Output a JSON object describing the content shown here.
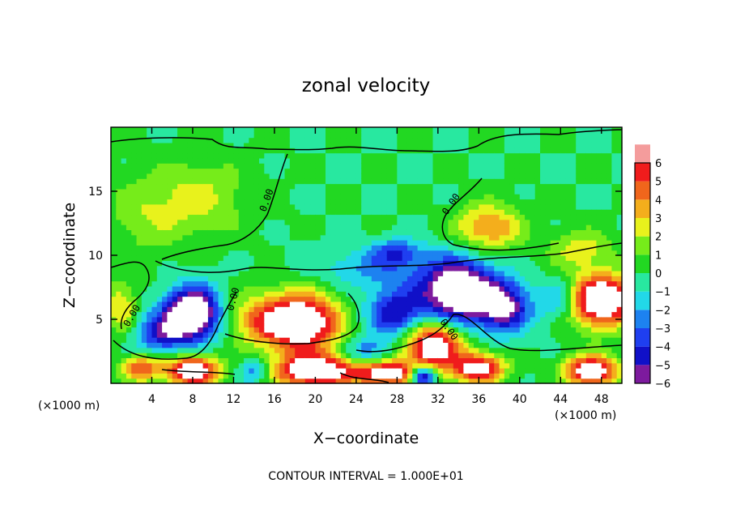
{
  "chart_data": {
    "type": "heatmap",
    "title": "zonal velocity",
    "xlabel": "X−coordinate",
    "ylabel": "Z−coordinate",
    "x_unit_left": "(×1000 m)",
    "x_unit_right": "(×1000 m)",
    "footer": "CONTOUR INTERVAL = 1.000E+01",
    "xlim": [
      0,
      50
    ],
    "ylim": [
      0,
      20
    ],
    "x_ticks": [
      4,
      8,
      12,
      16,
      20,
      24,
      28,
      32,
      36,
      40,
      44,
      48
    ],
    "y_ticks": [
      5,
      10,
      15
    ],
    "contour_label": "0.00",
    "colorbar": {
      "levels": [
        -6,
        -5,
        -4,
        -3,
        -2,
        -1,
        0,
        1,
        2,
        3,
        4,
        5,
        6
      ],
      "colors": [
        "#7d1a9e",
        "#1010c8",
        "#1f3ff0",
        "#1d82f0",
        "#22d8e8",
        "#28e8a0",
        "#22d822",
        "#76ec1a",
        "#e8f21c",
        "#f4ae1c",
        "#f0661c",
        "#f01c1c",
        "#f49c9c"
      ],
      "saturated_color": "#ffffff"
    },
    "features": [
      {
        "x": 8.5,
        "z": 14.5,
        "value": 2.2,
        "sx": 5,
        "sz": 3
      },
      {
        "x": 3,
        "z": 13,
        "value": 1.4,
        "sx": 4,
        "sz": 3
      },
      {
        "x": 37,
        "z": 12.2,
        "value": 4.2,
        "sx": 3.2,
        "sz": 1.8
      },
      {
        "x": 46,
        "z": 10.5,
        "value": 2.6,
        "sx": 3,
        "sz": 1.5
      },
      {
        "x": 26,
        "z": 9,
        "value": -2.2,
        "sx": 6,
        "sz": 1.5
      },
      {
        "x": 28,
        "z": 10.3,
        "value": -3.2,
        "sx": 2.5,
        "sz": 1
      },
      {
        "x": 8,
        "z": 5.5,
        "value": -9,
        "sx": 2.6,
        "sz": 2
      },
      {
        "x": 5,
        "z": 4,
        "value": -4.5,
        "sx": 2.5,
        "sz": 1.5
      },
      {
        "x": 18.5,
        "z": 4.8,
        "value": 9,
        "sx": 3.8,
        "sz": 2.2
      },
      {
        "x": 14,
        "z": 5,
        "value": 2.5,
        "sx": 3,
        "sz": 2
      },
      {
        "x": 28,
        "z": 5.5,
        "value": -5,
        "sx": 3,
        "sz": 2
      },
      {
        "x": 34,
        "z": 7.2,
        "value": -9,
        "sx": 3.4,
        "sz": 2.4
      },
      {
        "x": 38.5,
        "z": 6,
        "value": -6,
        "sx": 2.5,
        "sz": 2
      },
      {
        "x": 31.5,
        "z": 3,
        "value": 8,
        "sx": 2.8,
        "sz": 2
      },
      {
        "x": 48,
        "z": 6.5,
        "value": 9,
        "sx": 3.2,
        "sz": 2
      },
      {
        "x": 44,
        "z": 6.5,
        "value": -3,
        "sx": 2,
        "sz": 1.5
      },
      {
        "x": 1,
        "z": 6,
        "value": 3,
        "sx": 1.5,
        "sz": 2
      },
      {
        "x": 3,
        "z": 1.2,
        "value": 5,
        "sx": 2,
        "sz": 1
      },
      {
        "x": 8,
        "z": 1,
        "value": 8,
        "sx": 2.5,
        "sz": 1.2
      },
      {
        "x": 20,
        "z": 1,
        "value": 8,
        "sx": 4,
        "sz": 1.3
      },
      {
        "x": 27,
        "z": 0.8,
        "value": 7,
        "sx": 3,
        "sz": 1
      },
      {
        "x": 30.5,
        "z": 0.6,
        "value": -8,
        "sx": 1.2,
        "sz": 0.8
      },
      {
        "x": 36,
        "z": 1.2,
        "value": 7,
        "sx": 2.5,
        "sz": 1.2
      },
      {
        "x": 47,
        "z": 1,
        "value": 8,
        "sx": 2.5,
        "sz": 1.2
      },
      {
        "x": 14,
        "z": 1,
        "value": -3,
        "sx": 1.5,
        "sz": 1
      },
      {
        "x": 25,
        "z": 2.5,
        "value": -3,
        "sx": 2,
        "sz": 1
      }
    ]
  }
}
